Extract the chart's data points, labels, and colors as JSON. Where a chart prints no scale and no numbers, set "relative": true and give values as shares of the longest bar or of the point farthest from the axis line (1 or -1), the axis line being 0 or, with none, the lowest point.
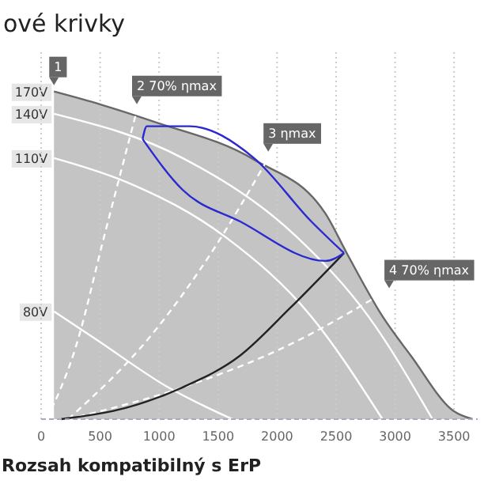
{
  "chart_data": {
    "type": "line",
    "title": "ové krivky",
    "relative": true,
    "xlim": [
      0,
      3700
    ],
    "xticks": [
      0,
      500,
      1000,
      1500,
      2000,
      2500,
      3000,
      3500
    ],
    "grid": "x",
    "tick_labels": "x",
    "series": [
      {
        "name": "170V",
        "type": "area",
        "color": "#c4c4c4",
        "x": [
          109,
          508,
          956,
          1804,
          2409,
          2590,
          2893,
          3135,
          3499,
          3656
        ],
        "values": [
          1.0,
          0.96,
          0.908,
          0.792,
          0.628,
          0.507,
          0.314,
          0.193,
          0.024,
          0
        ]
      },
      {
        "name": "140V",
        "color": "#ffffff",
        "x": [
          109,
          1199,
          2167,
          2773,
          3317
        ],
        "values": [
          0.932,
          0.797,
          0.556,
          0.314,
          0
        ]
      },
      {
        "name": "110V",
        "color": "#ffffff",
        "x": [
          109,
          714,
          1562,
          2288,
          2893
        ],
        "values": [
          0.797,
          0.725,
          0.556,
          0.314,
          0
        ]
      },
      {
        "name": "80V",
        "color": "#ffffff",
        "x": [
          109,
          472,
          1077,
          1622
        ],
        "values": [
          0.329,
          0.242,
          0.097,
          0
        ]
      },
      {
        "color": "#ffffff",
        "line_style": "dashed",
        "x": [
          48,
          291,
          533,
          811
        ],
        "values": [
          0,
          0.217,
          0.556,
          0.942
        ]
      },
      {
        "color": "#ffffff",
        "line_style": "dashed",
        "x": [
          230,
          956,
          1441,
          1925
        ],
        "values": [
          0,
          0.266,
          0.507,
          0.797
        ]
      },
      {
        "color": "#ffffff",
        "line_style": "dashed",
        "x": [
          230,
          1199,
          2046,
          3015
        ],
        "values": [
          0,
          0.097,
          0.217,
          0.411
        ]
      },
      {
        "color": "#222222",
        "x": [
          169,
          714,
          1199,
          1683,
          2107,
          2567
        ],
        "values": [
          0,
          0.034,
          0.097,
          0.193,
          0.338,
          0.507
        ]
      },
      {
        "color": "#2a2ad0",
        "x": [
          860,
          896,
          1259,
          1804,
          2288,
          2567
        ],
        "values": [
          0.855,
          0.894,
          0.894,
          0.797,
          0.604,
          0.507
        ]
      },
      {
        "color": "#2a2ad0",
        "x": [
          860,
          1199,
          1683,
          2409,
          2567
        ],
        "values": [
          0.855,
          0.7,
          0.604,
          0.483,
          0.507
        ]
      }
    ],
    "annotations": [
      {
        "text": "1",
        "x": 109,
        "y": 1.0
      },
      {
        "text": "2 70% ηmax",
        "x": 811,
        "y": 0.942
      },
      {
        "text": "3 ηmax",
        "x": 1925,
        "y": 0.797
      },
      {
        "text": "4 70% ηmax",
        "x": 2950,
        "y": 0.38
      },
      "Rozsah kompatibilný s ErP"
    ]
  }
}
